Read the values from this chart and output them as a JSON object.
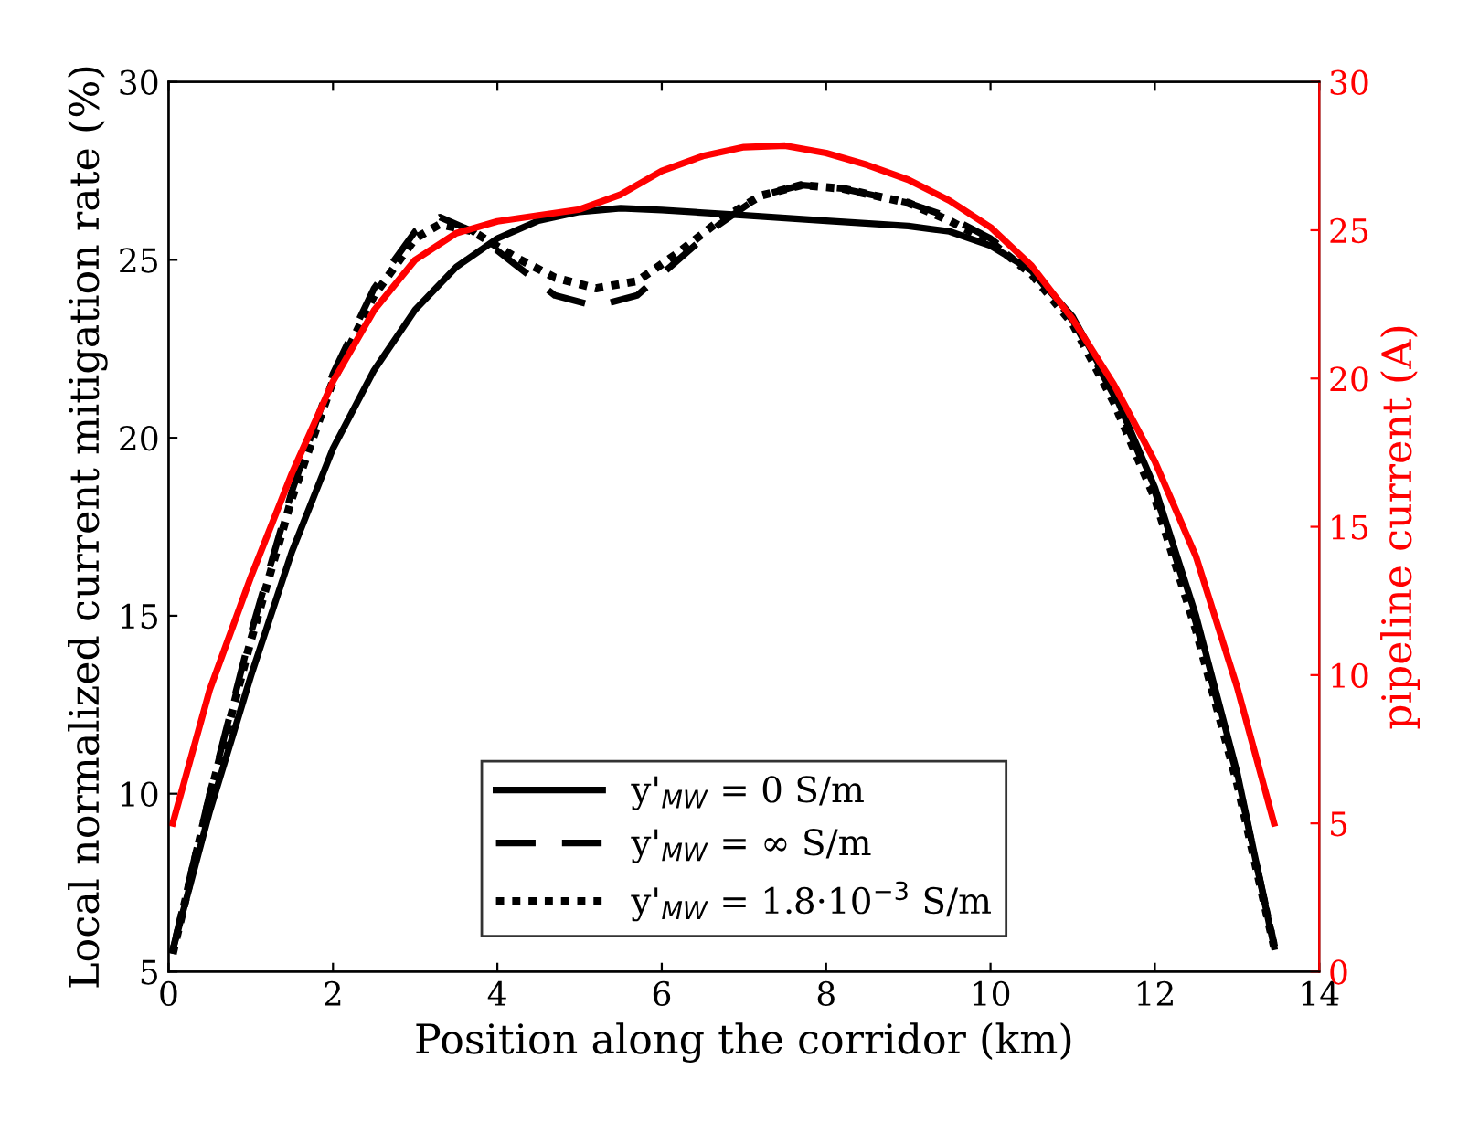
{
  "chart_data": {
    "type": "line",
    "xlabel": "Position along the corridor (km)",
    "ylabel": "Local normalized current mitigation rate (%)",
    "y2label": "pipeline current (A)",
    "xlim": [
      0,
      14
    ],
    "xticks": [
      0,
      2,
      4,
      6,
      8,
      10,
      12,
      14
    ],
    "ylim": [
      5,
      30
    ],
    "yticks": [
      5,
      10,
      15,
      20,
      25,
      30
    ],
    "y2lim": [
      0,
      30
    ],
    "y2ticks": [
      0,
      5,
      10,
      15,
      20,
      25,
      30
    ],
    "grid": false,
    "legend": "bottom",
    "series": [
      {
        "name": "y'$_{MW}$ = 0 S/m",
        "color": "#000000",
        "line_style": "solid",
        "x": [
          0.05,
          0.5,
          1,
          1.5,
          2,
          2.5,
          3,
          3.5,
          4,
          4.5,
          5,
          5.5,
          6,
          7,
          8,
          9,
          9.5,
          10,
          10.5,
          11,
          11.5,
          12,
          12.5,
          13,
          13.45
        ],
        "values": [
          5.6,
          9.5,
          13.3,
          16.8,
          19.7,
          21.9,
          23.6,
          24.8,
          25.6,
          26.1,
          26.35,
          26.45,
          26.4,
          26.25,
          26.1,
          25.95,
          25.8,
          25.4,
          24.7,
          23.4,
          21.3,
          18.6,
          15.0,
          10.6,
          5.7
        ]
      },
      {
        "name": "y'$_{MW}$ = ∞ S/m",
        "color": "#000000",
        "line_style": "dashed",
        "x": [
          0.05,
          0.5,
          1,
          1.5,
          2,
          2.5,
          3,
          3.3,
          3.7,
          4.2,
          4.7,
          5.2,
          5.7,
          6.2,
          6.7,
          7.2,
          7.7,
          8.2,
          9,
          9.5,
          10,
          10.5,
          11,
          11.5,
          12,
          12.5,
          13,
          13.45
        ],
        "values": [
          5.6,
          10.0,
          14.5,
          18.5,
          21.8,
          24.2,
          25.8,
          26.2,
          25.8,
          24.9,
          24.0,
          23.7,
          24.0,
          25.0,
          26.0,
          26.8,
          27.1,
          27.0,
          26.6,
          26.2,
          25.6,
          24.7,
          23.3,
          21.2,
          18.5,
          14.8,
          10.5,
          5.8
        ]
      },
      {
        "name": "y'$_{MW}$ = 1.8·10$^{−3}$ S/m",
        "color": "#000000",
        "line_style": "dotted",
        "x": [
          0.05,
          0.5,
          1,
          1.5,
          2,
          2.5,
          3,
          3.3,
          3.7,
          4.2,
          4.7,
          5.2,
          5.7,
          6.2,
          6.7,
          7.2,
          7.7,
          8.2,
          9,
          9.5,
          10,
          10.5,
          11,
          11.5,
          12,
          12.5,
          13,
          13.45
        ],
        "values": [
          5.5,
          9.9,
          14.3,
          18.3,
          21.6,
          24.0,
          25.6,
          26.0,
          25.8,
          25.1,
          24.5,
          24.2,
          24.4,
          25.2,
          26.1,
          26.8,
          27.1,
          27.0,
          26.6,
          26.1,
          25.5,
          24.6,
          23.2,
          21.0,
          18.3,
          14.6,
          10.3,
          5.7
        ]
      },
      {
        "color": "#ff0000",
        "line_style": "solid",
        "axis": "y2",
        "x": [
          0.05,
          0.5,
          1,
          1.5,
          2,
          2.5,
          3,
          3.5,
          4,
          4.5,
          5,
          5.5,
          6,
          6.5,
          7,
          7.5,
          8,
          8.5,
          9,
          9.5,
          10,
          10.5,
          11,
          11.5,
          12,
          12.5,
          13,
          13.45
        ],
        "values": [
          5.0,
          9.5,
          13.3,
          16.8,
          19.9,
          22.3,
          24.0,
          24.9,
          25.3,
          25.5,
          25.7,
          26.2,
          27.0,
          27.5,
          27.8,
          27.85,
          27.6,
          27.2,
          26.7,
          26.0,
          25.1,
          23.8,
          22.0,
          19.8,
          17.2,
          14.0,
          9.6,
          5.0
        ]
      }
    ]
  }
}
